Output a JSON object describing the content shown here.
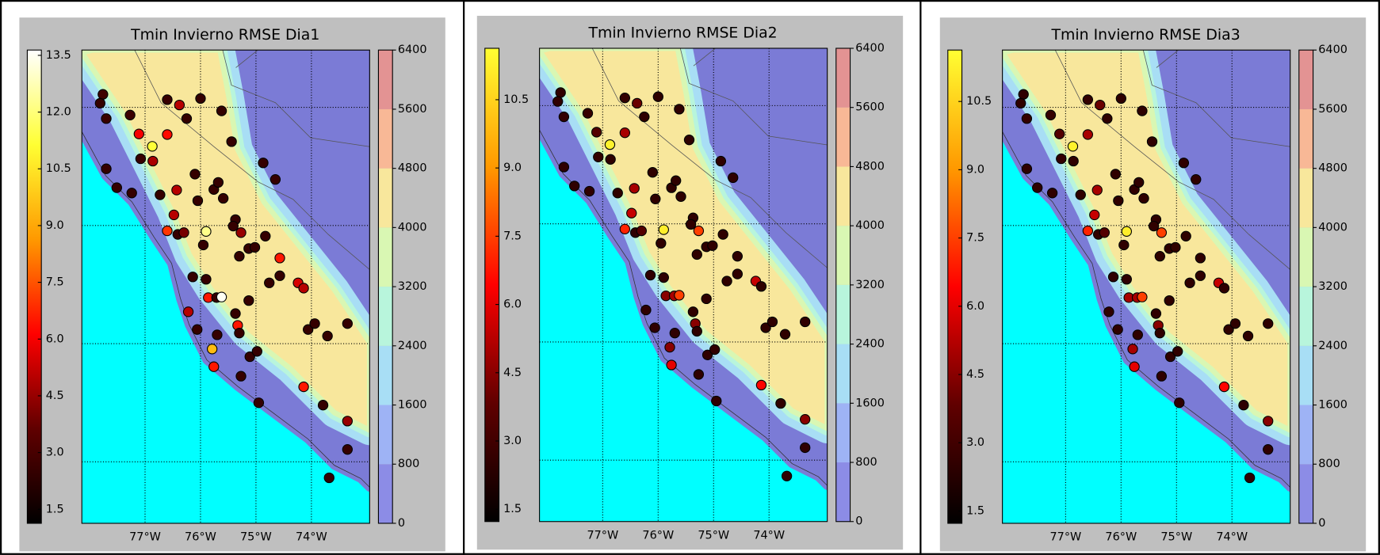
{
  "stations": {
    "lon": [
      -77.76,
      -77.81,
      -77.7,
      -77.27,
      -77.11,
      -76.87,
      -77.08,
      -76.86,
      -76.6,
      -76.6,
      -76.38,
      -76.0,
      -76.25,
      -75.62,
      -75.44,
      -74.87,
      -74.65,
      -77.7,
      -77.51,
      -77.24,
      -76.73,
      -76.43,
      -76.1,
      -76.05,
      -75.76,
      -75.68,
      -75.59,
      -76.48,
      -76.6,
      -76.41,
      -76.3,
      -75.9,
      -75.95,
      -75.37,
      -75.41,
      -75.27,
      -75.3,
      -75.13,
      -75.02,
      -74.83,
      -74.57,
      -76.14,
      -75.9,
      -75.86,
      -75.71,
      -75.62,
      -75.13,
      -74.76,
      -74.57,
      -74.24,
      -74.14,
      -76.22,
      -76.06,
      -75.7,
      -75.37,
      -75.33,
      -75.3,
      -75.79,
      -75.76,
      -75.11,
      -74.98,
      -75.27,
      -74.95,
      -74.14,
      -74.06,
      -73.94,
      -73.71,
      -73.35,
      -73.79,
      -73.35,
      -73.35,
      -73.68
    ],
    "lat": [
      -9.78,
      -9.93,
      -10.19,
      -10.13,
      -10.45,
      -10.66,
      -10.87,
      -10.91,
      -10.46,
      -9.87,
      -9.96,
      -9.85,
      -10.19,
      -10.06,
      -10.58,
      -10.94,
      -11.22,
      -11.04,
      -11.36,
      -11.45,
      -11.48,
      -11.4,
      -11.13,
      -11.58,
      -11.39,
      -11.27,
      -11.54,
      -11.82,
      -12.09,
      -12.15,
      -12.12,
      -12.1,
      -12.33,
      -11.9,
      -12.01,
      -12.12,
      -12.52,
      -12.39,
      -12.37,
      -12.18,
      -12.55,
      -12.87,
      -12.91,
      -13.22,
      -13.22,
      -13.21,
      -13.27,
      -12.97,
      -12.85,
      -12.97,
      -13.06,
      -13.46,
      -13.76,
      -13.85,
      -13.49,
      -13.69,
      -13.82,
      -14.09,
      -14.39,
      -14.22,
      -14.13,
      -14.55,
      -15.0,
      -14.73,
      -13.76,
      -13.66,
      -13.87,
      -13.66,
      -15.04,
      -15.31,
      -15.79,
      -16.27
    ]
  },
  "chart_data": [
    {
      "type": "map",
      "title": "Tmin Invierno RMSE Dia1",
      "xlim": [
        -78.14,
        -72.95
      ],
      "ylim": [
        -17.04,
        -9.03
      ],
      "xticks": [
        {
          "value": -77,
          "label": "77°W"
        },
        {
          "value": -76,
          "label": "76°W"
        },
        {
          "value": -75,
          "label": "75°W"
        },
        {
          "value": -74,
          "label": "74°W"
        }
      ],
      "yticks": [
        -16,
        -14,
        -12,
        -10
      ],
      "grid": true,
      "values": [
        2.8,
        2.5,
        2.6,
        2.7,
        6.0,
        11.2,
        2.6,
        4.8,
        6.3,
        2.6,
        5.0,
        2.5,
        2.5,
        2.5,
        2.5,
        2.5,
        2.5,
        2.5,
        2.5,
        2.5,
        2.5,
        5.0,
        2.5,
        2.5,
        2.5,
        2.5,
        2.5,
        5.0,
        7.0,
        2.5,
        4.0,
        12.2,
        2.5,
        2.5,
        2.5,
        4.5,
        2.5,
        2.5,
        2.5,
        2.5,
        6.5,
        2.5,
        2.5,
        6.5,
        2.5,
        13.5,
        2.5,
        2.5,
        2.5,
        5.5,
        5.0,
        5.0,
        2.5,
        2.5,
        2.5,
        6.5,
        2.5,
        9.5,
        6.5,
        2.5,
        2.5,
        2.5,
        2.5,
        6.5,
        2.5,
        2.5,
        2.5,
        2.5,
        2.5,
        4.5,
        2.5,
        2.5
      ],
      "colorbar": {
        "clim": [
          1.13,
          13.64
        ],
        "colormap": [
          "#000000",
          "#600000",
          "#ff0000",
          "#ff9900",
          "#ffff33",
          "#ffffff"
        ],
        "ticks": [
          1.5,
          {
            "value": 3,
            "label": "3.0"
          },
          4.5,
          {
            "value": 6,
            "label": "6.0"
          },
          7.5,
          {
            "value": 9,
            "label": "9.0"
          },
          10.5,
          {
            "value": 12,
            "label": "12.0"
          },
          13.5
        ]
      },
      "elevation": {
        "levels": [
          0,
          800,
          1600,
          2400,
          3200,
          4000,
          4800,
          5600,
          6400
        ],
        "colors": [
          "#8c8ce6",
          "#9eb3f5",
          "#a8def5",
          "#b8f5dc",
          "#d9f7b3",
          "#f8e79c",
          "#f8b896",
          "#e39393"
        ]
      }
    },
    {
      "type": "map",
      "title": "Tmin Invierno RMSE Dia2",
      "xlim": [
        -78.14,
        -72.95
      ],
      "ylim": [
        -17.04,
        -9.03
      ],
      "xticks": [
        {
          "value": -77,
          "label": "77°W"
        },
        {
          "value": -76,
          "label": "76°W"
        },
        {
          "value": -75,
          "label": "75°W"
        },
        {
          "value": -74,
          "label": "74°W"
        }
      ],
      "yticks": [
        -16,
        -14,
        -12,
        -10
      ],
      "grid": true,
      "values": [
        2.5,
        2.5,
        2.6,
        2.7,
        3.5,
        11.3,
        2.6,
        2.5,
        5.0,
        2.6,
        4.0,
        2.5,
        2.5,
        2.5,
        2.5,
        2.5,
        2.5,
        2.5,
        2.5,
        2.5,
        2.5,
        5.0,
        2.5,
        2.5,
        2.5,
        2.5,
        2.5,
        5.5,
        7.0,
        2.5,
        3.5,
        11.2,
        2.5,
        2.5,
        2.5,
        7.5,
        2.5,
        2.5,
        2.5,
        2.5,
        2.5,
        2.5,
        2.5,
        4.5,
        5.0,
        7.5,
        2.5,
        2.5,
        2.5,
        5.5,
        2.5,
        2.5,
        2.5,
        2.5,
        2.5,
        4.5,
        2.5,
        4.5,
        6.0,
        2.5,
        2.5,
        2.5,
        2.5,
        6.5,
        2.5,
        2.5,
        2.5,
        2.5,
        2.5,
        4.5,
        2.5,
        2.5
      ],
      "colorbar": {
        "clim": [
          1.23,
          11.63
        ],
        "colormap": [
          "#000000",
          "#600000",
          "#ff0000",
          "#ff9900",
          "#ffff33"
        ],
        "ticks": [
          1.5,
          {
            "value": 3,
            "label": "3.0"
          },
          4.5,
          {
            "value": 6,
            "label": "6.0"
          },
          7.5,
          {
            "value": 9,
            "label": "9.0"
          },
          10.5
        ]
      },
      "elevation": {
        "levels": [
          0,
          800,
          1600,
          2400,
          3200,
          4000,
          4800,
          5600,
          6400
        ],
        "colors": [
          "#8c8ce6",
          "#9eb3f5",
          "#a8def5",
          "#b8f5dc",
          "#d9f7b3",
          "#f8e79c",
          "#f8b896",
          "#e39393"
        ]
      }
    },
    {
      "type": "map",
      "title": "Tmin Invierno RMSE Dia3",
      "xlim": [
        -78.14,
        -72.95
      ],
      "ylim": [
        -17.04,
        -9.03
      ],
      "xticks": [
        {
          "value": -77,
          "label": "77°W"
        },
        {
          "value": -76,
          "label": "76°W"
        },
        {
          "value": -75,
          "label": "75°W"
        },
        {
          "value": -74,
          "label": "74°W"
        }
      ],
      "yticks": [
        -16,
        -14,
        -12,
        -10
      ],
      "grid": true,
      "values": [
        2.5,
        2.5,
        2.6,
        2.7,
        3.5,
        11.3,
        2.6,
        2.5,
        5.0,
        2.6,
        4.0,
        2.5,
        2.5,
        2.5,
        2.5,
        2.5,
        2.5,
        2.5,
        2.5,
        2.5,
        2.5,
        5.0,
        2.5,
        2.5,
        2.5,
        2.5,
        2.5,
        5.5,
        7.0,
        2.5,
        3.5,
        11.2,
        2.5,
        2.5,
        2.5,
        7.5,
        2.5,
        2.5,
        2.5,
        2.5,
        2.5,
        2.5,
        2.5,
        5.0,
        5.0,
        7.5,
        2.5,
        2.5,
        2.5,
        5.5,
        2.5,
        2.5,
        2.5,
        2.5,
        2.5,
        4.5,
        2.5,
        5.0,
        6.0,
        2.5,
        2.5,
        2.5,
        2.5,
        6.5,
        2.5,
        2.5,
        2.5,
        2.5,
        2.5,
        4.5,
        2.5,
        2.5
      ],
      "colorbar": {
        "clim": [
          1.23,
          11.63
        ],
        "colormap": [
          "#000000",
          "#600000",
          "#ff0000",
          "#ff9900",
          "#ffff33"
        ],
        "ticks": [
          1.5,
          {
            "value": 3,
            "label": "3.0"
          },
          4.5,
          {
            "value": 6,
            "label": "6.0"
          },
          7.5,
          {
            "value": 9,
            "label": "9.0"
          },
          10.5
        ]
      },
      "elevation": {
        "levels": [
          0,
          800,
          1600,
          2400,
          3200,
          4000,
          4800,
          5600,
          6400
        ],
        "colors": [
          "#8c8ce6",
          "#9eb3f5",
          "#a8def5",
          "#b8f5dc",
          "#d9f7b3",
          "#f8e79c",
          "#f8b896",
          "#e39393"
        ]
      }
    }
  ]
}
